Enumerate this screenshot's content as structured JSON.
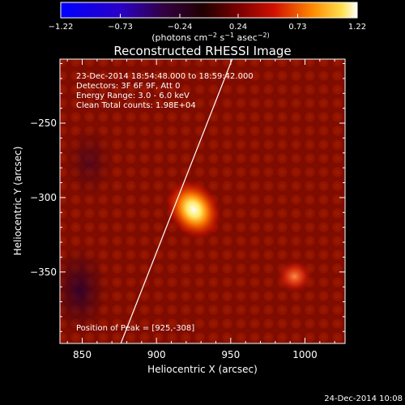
{
  "chart_data": {
    "type": "heatmap",
    "title": "Reconstructed RHESSI Image",
    "xlabel": "Heliocentric X (arcsec)",
    "ylabel": "Heliocentric Y (arcsec)",
    "xlim": [
      835,
      1027
    ],
    "ylim": [
      -398,
      -207
    ],
    "x_ticks": [
      850,
      900,
      950,
      1000
    ],
    "y_ticks": [
      -250,
      -300,
      -350
    ],
    "colorbar": {
      "min": -1.22,
      "max": 1.22,
      "ticks": [
        -1.22,
        -0.73,
        -0.24,
        0.24,
        0.73,
        1.22
      ],
      "tick_labels": [
        "−1.22",
        "−0.73",
        "−0.24",
        "0.24",
        "0.73",
        "1.22"
      ],
      "units_label": "(photons cm",
      "units_label_mid": " s",
      "units_label_end": " asec",
      "units_exp1": "−2",
      "units_exp2": "−1",
      "units_exp3": "−2)",
      "colormap": "rhessi-hot"
    },
    "annotations": [
      "23-Dec-2014 18:54:48.000 to 18:59:42.000",
      "Detectors: 3F 6F 9F, Att 0",
      "Energy Range: 3.0 - 6.0 keV",
      "Clean     Total counts: 1.98E+04"
    ],
    "peak_label": "Position of Peak = [925,-308]",
    "sources": [
      {
        "x": 925,
        "y": -308,
        "peak": 1.22
      },
      {
        "x": 993,
        "y": -353,
        "peak": 0.55
      }
    ],
    "limb_line": {
      "x_at_ymax": 951,
      "x_at_ymin": 876
    }
  },
  "footer": {
    "date": "24-Dec-2014 10:08"
  }
}
